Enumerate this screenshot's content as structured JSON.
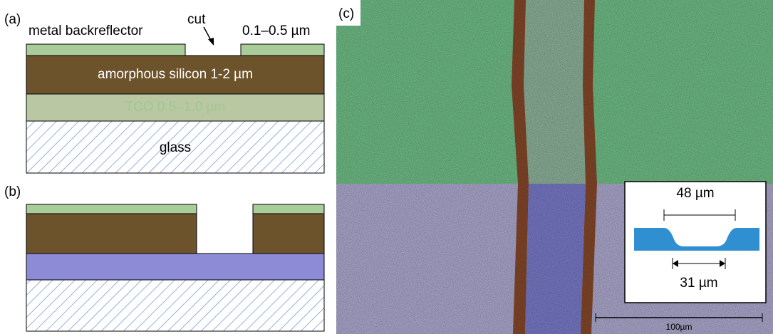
{
  "panel_a": {
    "label": "(a)",
    "metal": "metal backreflector",
    "cut": "cut",
    "metal_thickness": "0.1–0.5 µm",
    "silicon": "amorphous silicon 1-2 µm",
    "tco": "TCO 0.5–1.0 µm",
    "glass": "glass"
  },
  "panel_b": {
    "label": "(b)"
  },
  "panel_c": {
    "label": "(c)",
    "inset_top_width": "48 µm",
    "inset_bottom_width": "31 µm",
    "scale_bar": "100µm"
  }
}
